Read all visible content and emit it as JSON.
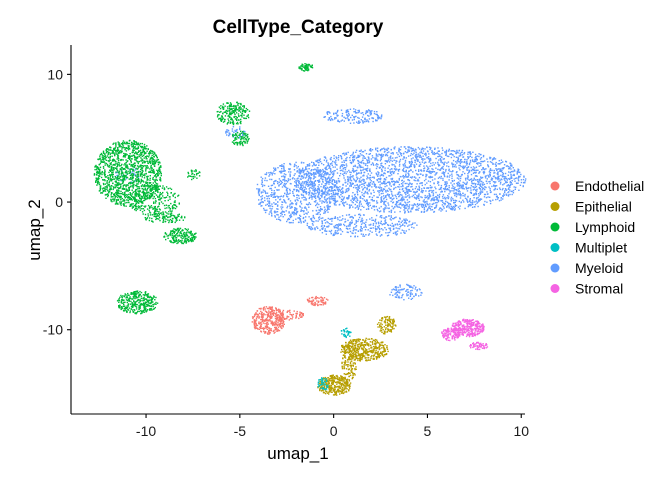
{
  "chart_data": {
    "type": "scatter",
    "title": "CellType_Category",
    "xlabel": "umap_1",
    "ylabel": "umap_2",
    "xlim": [
      -14,
      10.2
    ],
    "ylim": [
      -16.6,
      12.3
    ],
    "xticks": [
      -10,
      -5,
      0,
      5,
      10
    ],
    "yticks": [
      10,
      0,
      -10
    ],
    "grid": false,
    "legend_position": "right",
    "series": [
      {
        "name": "Endothelial",
        "color": "#F8766D"
      },
      {
        "name": "Epithelial",
        "color": "#B79F00"
      },
      {
        "name": "Lymphoid",
        "color": "#00BA38"
      },
      {
        "name": "Multiplet",
        "color": "#00BFC4"
      },
      {
        "name": "Myeloid",
        "color": "#619CFF"
      },
      {
        "name": "Stromal",
        "color": "#F564E3"
      }
    ],
    "clusters": [
      {
        "series": "Myeloid",
        "cx": 4.0,
        "cy": 1.8,
        "rx": 6.2,
        "ry": 2.6,
        "n": 2600
      },
      {
        "series": "Myeloid",
        "cx": -2.0,
        "cy": 0.8,
        "rx": 2.2,
        "ry": 2.4,
        "n": 700
      },
      {
        "series": "Myeloid",
        "cx": 1.5,
        "cy": -1.8,
        "rx": 3.0,
        "ry": 0.9,
        "n": 350
      },
      {
        "series": "Myeloid",
        "cx": 1.0,
        "cy": 6.8,
        "rx": 1.6,
        "ry": 0.6,
        "n": 160
      },
      {
        "series": "Myeloid",
        "cx": 3.8,
        "cy": -7.0,
        "rx": 0.9,
        "ry": 0.6,
        "n": 90
      },
      {
        "series": "Myeloid",
        "cx": -5.2,
        "cy": 5.5,
        "rx": 0.6,
        "ry": 0.5,
        "n": 40
      },
      {
        "series": "Myeloid",
        "cx": -11.0,
        "cy": 2.2,
        "rx": 0.8,
        "ry": 0.6,
        "n": 40
      },
      {
        "series": "Lymphoid",
        "cx": -11.0,
        "cy": 2.3,
        "rx": 1.8,
        "ry": 2.6,
        "n": 1300
      },
      {
        "series": "Lymphoid",
        "cx": -9.6,
        "cy": 0.2,
        "rx": 1.4,
        "ry": 1.2,
        "n": 250
      },
      {
        "series": "Lymphoid",
        "cx": -8.2,
        "cy": -2.6,
        "rx": 0.9,
        "ry": 0.6,
        "n": 180
      },
      {
        "series": "Lymphoid",
        "cx": -9.0,
        "cy": -1.2,
        "rx": 1.1,
        "ry": 0.4,
        "n": 100
      },
      {
        "series": "Lymphoid",
        "cx": -10.5,
        "cy": -7.8,
        "rx": 1.1,
        "ry": 0.9,
        "n": 320
      },
      {
        "series": "Lymphoid",
        "cx": -5.4,
        "cy": 7.0,
        "rx": 0.9,
        "ry": 0.9,
        "n": 200
      },
      {
        "series": "Lymphoid",
        "cx": -5.0,
        "cy": 5.0,
        "rx": 0.5,
        "ry": 0.6,
        "n": 80
      },
      {
        "series": "Lymphoid",
        "cx": -1.5,
        "cy": 10.6,
        "rx": 0.4,
        "ry": 0.3,
        "n": 60
      },
      {
        "series": "Lymphoid",
        "cx": -7.5,
        "cy": 2.2,
        "rx": 0.4,
        "ry": 0.4,
        "n": 30
      },
      {
        "series": "Endothelial",
        "cx": -3.5,
        "cy": -9.2,
        "rx": 0.9,
        "ry": 1.1,
        "n": 320
      },
      {
        "series": "Endothelial",
        "cx": -2.6,
        "cy": -8.8,
        "rx": 1.0,
        "ry": 0.4,
        "n": 80
      },
      {
        "series": "Endothelial",
        "cx": -0.9,
        "cy": -7.7,
        "rx": 0.6,
        "ry": 0.35,
        "n": 70
      },
      {
        "series": "Epithelial",
        "cx": 1.6,
        "cy": -11.5,
        "rx": 1.3,
        "ry": 0.9,
        "n": 420
      },
      {
        "series": "Epithelial",
        "cx": 0.0,
        "cy": -14.3,
        "rx": 0.9,
        "ry": 0.8,
        "n": 320
      },
      {
        "series": "Epithelial",
        "cx": 0.8,
        "cy": -12.6,
        "rx": 0.4,
        "ry": 1.4,
        "n": 120
      },
      {
        "series": "Epithelial",
        "cx": 2.8,
        "cy": -9.6,
        "rx": 0.5,
        "ry": 0.7,
        "n": 100
      },
      {
        "series": "Multiplet",
        "cx": -0.6,
        "cy": -14.2,
        "rx": 0.3,
        "ry": 0.5,
        "n": 40
      },
      {
        "series": "Multiplet",
        "cx": 0.6,
        "cy": -10.2,
        "rx": 0.3,
        "ry": 0.4,
        "n": 30
      },
      {
        "series": "Stromal",
        "cx": 7.1,
        "cy": -9.8,
        "rx": 0.9,
        "ry": 0.7,
        "n": 320
      },
      {
        "series": "Stromal",
        "cx": 6.2,
        "cy": -10.3,
        "rx": 0.5,
        "ry": 0.5,
        "n": 100
      },
      {
        "series": "Stromal",
        "cx": 7.7,
        "cy": -11.2,
        "rx": 0.5,
        "ry": 0.3,
        "n": 60
      }
    ]
  }
}
